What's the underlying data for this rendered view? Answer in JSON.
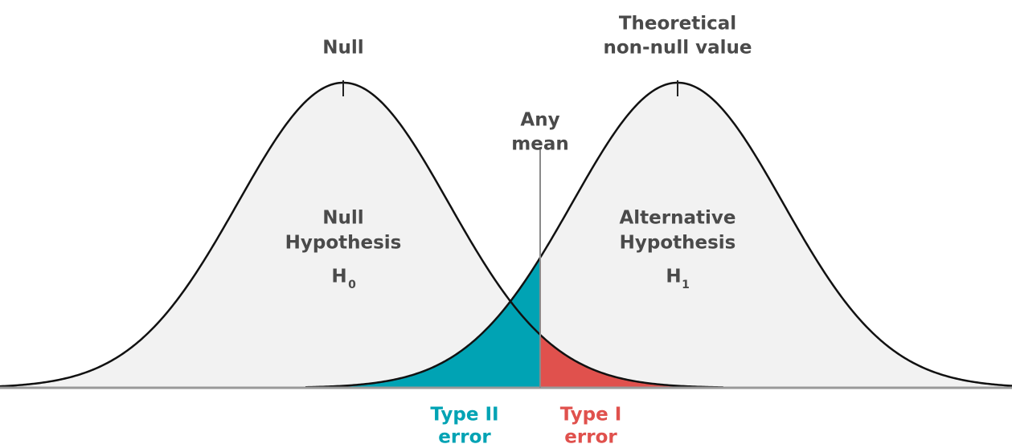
{
  "labels": {
    "null_mean": "Null",
    "alt_mean": [
      "Theoretical",
      "non-null value"
    ],
    "any_mean": [
      "Any",
      "mean"
    ],
    "null_hypothesis": {
      "name": [
        "Null",
        "Hypothesis"
      ],
      "symbol": "H",
      "subscript": "0"
    },
    "alt_hypothesis": {
      "name": [
        "Alternative",
        "Hypothesis"
      ],
      "symbol": "H",
      "subscript": "1"
    },
    "type_two": [
      "Type II",
      "error"
    ],
    "type_one": [
      "Type I",
      "error"
    ]
  }
}
